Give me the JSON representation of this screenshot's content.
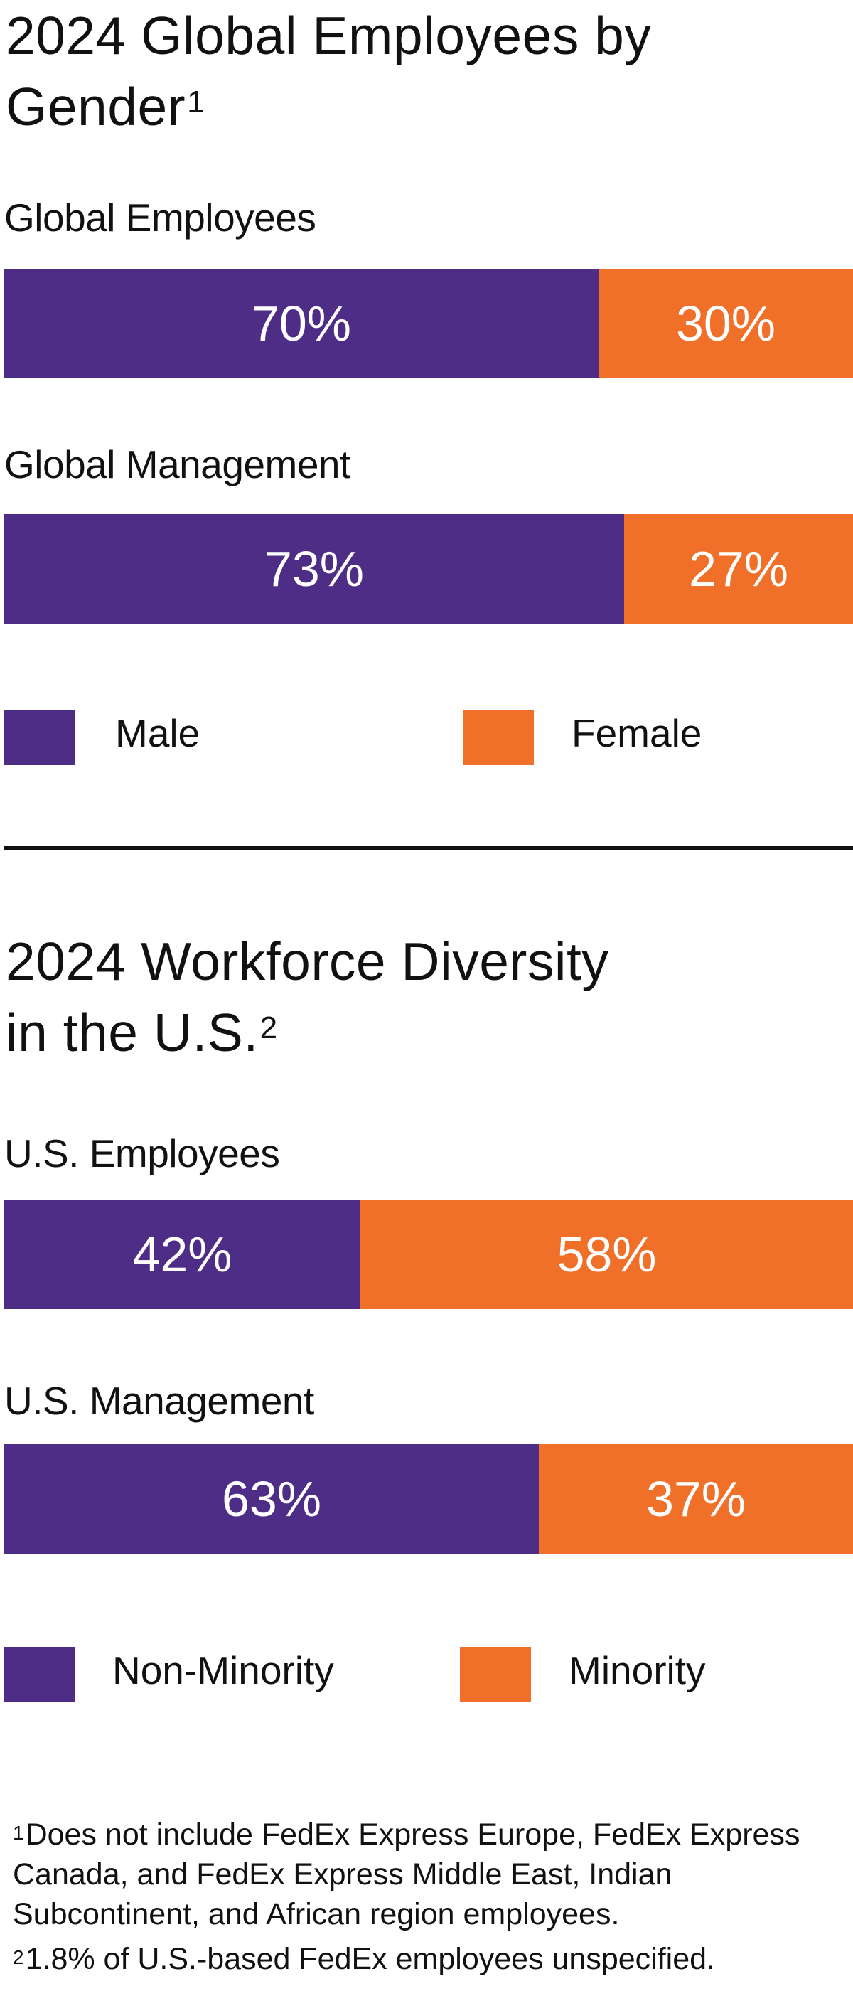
{
  "colors": {
    "primary": "#4e2d87",
    "secondary": "#f0702a"
  },
  "sections": [
    {
      "title_line1": "2024 Global Employees by",
      "title_line2": "Gender",
      "title_footnote_mark": "1"
    },
    {
      "title_line1": "2024 Workforce Diversity",
      "title_line2": "in the U.S.",
      "title_footnote_mark": "2"
    }
  ],
  "chart_data": [
    {
      "type": "bar",
      "orientation": "horizontal",
      "stacked": true,
      "percent": true,
      "title": "2024 Global Employees by Gender",
      "categories": [
        "Global Employees",
        "Global Management"
      ],
      "series": [
        {
          "name": "Male",
          "color": "#4e2d87",
          "values": [
            70,
            73
          ],
          "labels": [
            "70%",
            "73%"
          ]
        },
        {
          "name": "Female",
          "color": "#f0702a",
          "values": [
            30,
            27
          ],
          "labels": [
            "30%",
            "27%"
          ]
        }
      ],
      "xlim": [
        0,
        100
      ],
      "legend": "bottom"
    },
    {
      "type": "bar",
      "orientation": "horizontal",
      "stacked": true,
      "percent": true,
      "title": "2024 Workforce Diversity in the U.S.",
      "categories": [
        "U.S. Employees",
        "U.S. Management"
      ],
      "series": [
        {
          "name": "Non-Minority",
          "color": "#4e2d87",
          "values": [
            42,
            63
          ],
          "labels": [
            "42%",
            "63%"
          ]
        },
        {
          "name": "Minority",
          "color": "#f0702a",
          "values": [
            58,
            37
          ],
          "labels": [
            "58%",
            "37%"
          ]
        }
      ],
      "xlim": [
        0,
        100
      ],
      "legend": "bottom"
    }
  ],
  "footnotes": [
    {
      "mark": "1",
      "text": "Does not include FedEx Express Europe, FedEx Express Canada, and FedEx Express Middle East, Indian Subcontinent, and African region employees."
    },
    {
      "mark": "2",
      "text": "1.8% of U.S.-based FedEx employees unspecified."
    }
  ]
}
